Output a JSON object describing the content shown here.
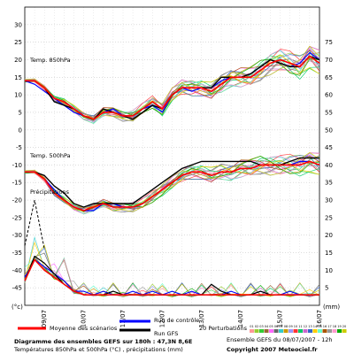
{
  "chart_data": {
    "type": "line",
    "left_axis": {
      "unit": "(°c)",
      "min": -50,
      "max": 35,
      "ticks": [
        30,
        25,
        20,
        15,
        10,
        5,
        0,
        -5,
        -10,
        -15,
        -20,
        -25,
        -30,
        -35,
        -40,
        -45
      ]
    },
    "right_axis": {
      "unit": "(mm)",
      "min": 0,
      "max": 85,
      "ticks": [
        75,
        70,
        65,
        60,
        55,
        50,
        45,
        40,
        35,
        30,
        25,
        20,
        15,
        10,
        5
      ]
    },
    "x_axis": {
      "min": 0,
      "max": 180,
      "tick_labels": [
        "09/07",
        "10/07",
        "11/07",
        "12/07",
        "13/07",
        "14/07",
        "15/07",
        "16/07"
      ],
      "tick_hours": [
        12,
        36,
        60,
        84,
        108,
        132,
        156,
        180
      ]
    },
    "grid": true,
    "x_hours": [
      0,
      6,
      12,
      18,
      24,
      30,
      36,
      42,
      48,
      54,
      60,
      66,
      72,
      78,
      84,
      90,
      96,
      102,
      108,
      114,
      120,
      126,
      132,
      138,
      144,
      150,
      156,
      162,
      168,
      174,
      180
    ],
    "panels": {
      "t850": {
        "label": "Temp. 850hPa",
        "mean": [
          14,
          14,
          12,
          9,
          8,
          6,
          4,
          3,
          5,
          5,
          4,
          4,
          6,
          8,
          6,
          10,
          12,
          12,
          12,
          11,
          13,
          15,
          15,
          15,
          17,
          19,
          20,
          19,
          18,
          21,
          19
        ],
        "control": [
          14,
          13,
          11,
          9,
          7,
          5,
          4,
          3,
          5,
          6,
          4,
          4,
          6,
          7,
          5,
          10,
          12,
          11,
          12,
          12,
          14,
          15,
          15,
          16,
          18,
          20,
          19,
          18,
          19,
          22,
          20
        ],
        "gfs": [
          14,
          14,
          12,
          8,
          7,
          6,
          4,
          3,
          6,
          5,
          4,
          3,
          5,
          7,
          6,
          10,
          12,
          12,
          12,
          12,
          15,
          15,
          15,
          16,
          18,
          20,
          19,
          18,
          18,
          21,
          20
        ]
      },
      "t500": {
        "label": "Temp. 500hPa",
        "mean": [
          -12,
          -12,
          -14,
          -18,
          -20,
          -22,
          -23,
          -22,
          -21,
          -22,
          -22,
          -22,
          -21,
          -19,
          -17,
          -15,
          -13,
          -12,
          -12,
          -13,
          -12,
          -12,
          -11,
          -11,
          -10,
          -10,
          -10,
          -10,
          -10,
          -9,
          -10
        ],
        "control": [
          -12,
          -12,
          -14,
          -17,
          -20,
          -22,
          -23,
          -23,
          -21,
          -21,
          -22,
          -22,
          -21,
          -19,
          -17,
          -15,
          -13,
          -12,
          -12,
          -13,
          -12,
          -12,
          -11,
          -11,
          -10,
          -10,
          -10,
          -10,
          -9,
          -9,
          -10
        ],
        "gfs": [
          -12,
          -12,
          -13,
          -16,
          -18,
          -21,
          -22,
          -21,
          -21,
          -21,
          -21,
          -21,
          -19,
          -17,
          -15,
          -13,
          -11,
          -10,
          -9,
          -9,
          -9,
          -9,
          -9,
          -9,
          -10,
          -10,
          -10,
          -9,
          -8,
          -8,
          -8
        ]
      },
      "precip": {
        "label": "Précipitations",
        "mean_mm": [
          7,
          13,
          10,
          8,
          6,
          4,
          3,
          3,
          3,
          3,
          3,
          3,
          3,
          3,
          3,
          3,
          3,
          3,
          3,
          3,
          3,
          3,
          3,
          3,
          3,
          3,
          3,
          3,
          3,
          3,
          3
        ],
        "control_mm": [
          8,
          13,
          11,
          9,
          7,
          4,
          4,
          3,
          4,
          3,
          3,
          4,
          3,
          4,
          3,
          4,
          3,
          4,
          3,
          3,
          3,
          4,
          3,
          3,
          4,
          3,
          3,
          4,
          3,
          3,
          3
        ],
        "gfs_mm": [
          7,
          14,
          12,
          9,
          6,
          4,
          3,
          3,
          3,
          4,
          3,
          3,
          3,
          3,
          3,
          3,
          3,
          3,
          3,
          6,
          4,
          3,
          3,
          3,
          4,
          3,
          3,
          3,
          3,
          3,
          3
        ],
        "gfs_spike_mm": [
          [
            0,
            17
          ],
          [
            6,
            30
          ],
          [
            12,
            16
          ]
        ]
      }
    },
    "legend": {
      "mean": "Moyenne des scénarios",
      "control": "Run de contrôle",
      "gfs": "Run GFS",
      "perturbations": "20 Perturbations",
      "perturbation_ids": [
        "01",
        "02",
        "03",
        "04",
        "05",
        "06",
        "07",
        "08",
        "09",
        "10",
        "11",
        "12",
        "13",
        "14",
        "15",
        "16",
        "17",
        "18",
        "19",
        "20"
      ]
    },
    "title": "Diagramme des ensembles GEFS sur 180h : 47,3N 8,6E",
    "subtitle": "Températures 850hPa et 500hPa (°C) , précipitations (mm)",
    "run_info": "Ensemble GEFS du 08/07/2007 - 12h",
    "copyright": "Copyright 2007 Meteociel.fr",
    "colors": {
      "mean": "#ff0000",
      "control": "#0000ff",
      "gfs": "#000000",
      "perturbations": [
        "#ff9999",
        "#99cc33",
        "#33cc33",
        "#996633",
        "#ff66ff",
        "#666666",
        "#33cccc",
        "#cc9900",
        "#9999ff",
        "#ff3333",
        "#00cc66",
        "#cc66cc",
        "#3366cc",
        "#ffcc00",
        "#66ffcc",
        "#aa5500",
        "#999999",
        "#ff99cc",
        "#00aa00",
        "#cccc00"
      ]
    }
  }
}
